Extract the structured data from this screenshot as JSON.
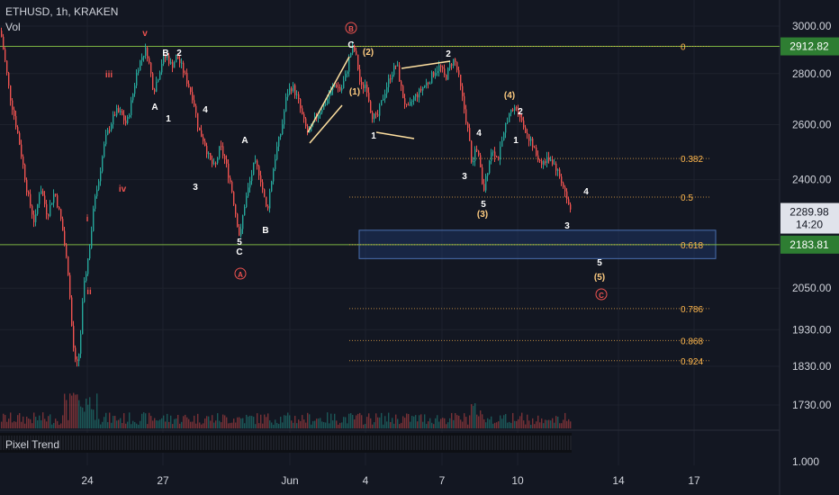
{
  "header": {
    "symbol_line": "ETHUSD, 1h, KRAKEN",
    "volume_label": "Vol",
    "indicator_label": "Pixel Trend"
  },
  "colors": {
    "background": "#131722",
    "up": "#26a69a",
    "down": "#ef5350",
    "guide": "#7cb342",
    "fib": "#ffb74d",
    "wave_red": "#ef5350",
    "wave_white": "#ffffff",
    "wave_orange": "#ffcc80",
    "zone_fill": "#1e3a6e",
    "axis_text": "#d1d4dc"
  },
  "chart_data": {
    "type": "candlestick",
    "title": "ETHUSD, 1h, KRAKEN",
    "y_axis": {
      "scale": "log",
      "ticks": [
        "3000.00",
        "2800.00",
        "2600.00",
        "2400.00",
        "2050.00",
        "1930.00",
        "1830.00",
        "1730.00"
      ]
    },
    "x_axis": {
      "ticks": [
        "24",
        "27",
        "Jun",
        "4",
        "7",
        "10",
        "14",
        "17"
      ]
    },
    "price_labels": [
      {
        "text": "2912.82",
        "value": 2912.82,
        "color": "green"
      },
      {
        "text": "2289.98",
        "sub": "14:20",
        "value": 2289.98,
        "color": "white"
      },
      {
        "text": "2183.81",
        "value": 2183.81,
        "color": "green"
      }
    ],
    "horizontal_lines": [
      2912.82,
      2183.81
    ],
    "fib_levels": [
      {
        "label": "0",
        "value": 2912.82
      },
      {
        "label": "0.382",
        "value": 2475
      },
      {
        "label": "0.5",
        "value": 2340
      },
      {
        "label": "0.618",
        "value": 2183.81
      },
      {
        "label": "0.786",
        "value": 1990
      },
      {
        "label": "0.868",
        "value": 1900
      },
      {
        "label": "0.924",
        "value": 1845
      }
    ],
    "zone": {
      "from": 2140,
      "to": 2230
    },
    "price_path": [
      [
        0,
        2980
      ],
      [
        10,
        2720
      ],
      [
        20,
        2550
      ],
      [
        30,
        2350
      ],
      [
        38,
        2250
      ],
      [
        44,
        2380
      ],
      [
        52,
        2280
      ],
      [
        60,
        2360
      ],
      [
        68,
        2250
      ],
      [
        75,
        2100
      ],
      [
        80,
        1900
      ],
      [
        84,
        1820
      ],
      [
        88,
        1880
      ],
      [
        92,
        2040
      ],
      [
        96,
        2120
      ],
      [
        100,
        2200
      ],
      [
        105,
        2350
      ],
      [
        110,
        2420
      ],
      [
        116,
        2540
      ],
      [
        122,
        2600
      ],
      [
        128,
        2650
      ],
      [
        134,
        2640
      ],
      [
        140,
        2600
      ],
      [
        146,
        2700
      ],
      [
        152,
        2820
      ],
      [
        158,
        2880
      ],
      [
        162,
        2900
      ],
      [
        166,
        2820
      ],
      [
        170,
        2730
      ],
      [
        175,
        2790
      ],
      [
        180,
        2860
      ],
      [
        185,
        2870
      ],
      [
        190,
        2830
      ],
      [
        196,
        2870
      ],
      [
        202,
        2820
      ],
      [
        208,
        2760
      ],
      [
        214,
        2700
      ],
      [
        220,
        2580
      ],
      [
        226,
        2540
      ],
      [
        232,
        2470
      ],
      [
        238,
        2440
      ],
      [
        244,
        2520
      ],
      [
        250,
        2460
      ],
      [
        256,
        2380
      ],
      [
        262,
        2270
      ],
      [
        266,
        2200
      ],
      [
        270,
        2300
      ],
      [
        276,
        2380
      ],
      [
        282,
        2460
      ],
      [
        288,
        2420
      ],
      [
        292,
        2350
      ],
      [
        296,
        2290
      ],
      [
        300,
        2380
      ],
      [
        306,
        2500
      ],
      [
        312,
        2580
      ],
      [
        318,
        2720
      ],
      [
        324,
        2750
      ],
      [
        330,
        2700
      ],
      [
        336,
        2620
      ],
      [
        342,
        2560
      ],
      [
        348,
        2610
      ],
      [
        354,
        2650
      ],
      [
        360,
        2680
      ],
      [
        366,
        2720
      ],
      [
        372,
        2760
      ],
      [
        378,
        2730
      ],
      [
        384,
        2800
      ],
      [
        388,
        2880
      ],
      [
        392,
        2910
      ],
      [
        396,
        2850
      ],
      [
        400,
        2740
      ],
      [
        406,
        2760
      ],
      [
        412,
        2640
      ],
      [
        418,
        2620
      ],
      [
        426,
        2720
      ],
      [
        434,
        2800
      ],
      [
        440,
        2840
      ],
      [
        446,
        2720
      ],
      [
        452,
        2650
      ],
      [
        458,
        2700
      ],
      [
        464,
        2720
      ],
      [
        470,
        2750
      ],
      [
        476,
        2770
      ],
      [
        482,
        2810
      ],
      [
        488,
        2830
      ],
      [
        494,
        2780
      ],
      [
        500,
        2840
      ],
      [
        504,
        2860
      ],
      [
        508,
        2800
      ],
      [
        514,
        2680
      ],
      [
        520,
        2560
      ],
      [
        524,
        2440
      ],
      [
        528,
        2530
      ],
      [
        532,
        2460
      ],
      [
        536,
        2350
      ],
      [
        540,
        2420
      ],
      [
        546,
        2520
      ],
      [
        552,
        2470
      ],
      [
        558,
        2540
      ],
      [
        562,
        2620
      ],
      [
        568,
        2650
      ],
      [
        574,
        2670
      ],
      [
        580,
        2600
      ],
      [
        586,
        2560
      ],
      [
        592,
        2510
      ],
      [
        598,
        2470
      ],
      [
        604,
        2460
      ],
      [
        610,
        2480
      ],
      [
        616,
        2450
      ],
      [
        620,
        2420
      ],
      [
        626,
        2370
      ],
      [
        630,
        2320
      ],
      [
        634,
        2290
      ]
    ],
    "wave_labels": [
      {
        "text": "v",
        "color": "red"
      },
      {
        "text": "iii",
        "color": "red"
      },
      {
        "text": "iv",
        "color": "red"
      },
      {
        "text": "i",
        "color": "red"
      },
      {
        "text": "ii",
        "color": "red"
      },
      {
        "text": "B",
        "color": "white"
      },
      {
        "text": "2",
        "color": "white"
      },
      {
        "text": "A",
        "color": "white"
      },
      {
        "text": "1",
        "color": "white"
      },
      {
        "text": "4",
        "color": "white"
      },
      {
        "text": "3",
        "color": "white"
      },
      {
        "text": "A",
        "color": "white"
      },
      {
        "text": "5",
        "color": "white"
      },
      {
        "text": "C",
        "color": "white"
      },
      {
        "text": "B",
        "color": "white"
      },
      {
        "text": "A",
        "color": "red_circle"
      },
      {
        "text": "B",
        "color": "red_circle"
      },
      {
        "text": "C",
        "color": "white"
      },
      {
        "text": "(2)",
        "color": "orange"
      },
      {
        "text": "(1)",
        "color": "orange"
      },
      {
        "text": "1",
        "color": "white"
      },
      {
        "text": "2",
        "color": "white"
      },
      {
        "text": "(4)",
        "color": "orange"
      },
      {
        "text": "2",
        "color": "white"
      },
      {
        "text": "4",
        "color": "white"
      },
      {
        "text": "1",
        "color": "white"
      },
      {
        "text": "3",
        "color": "white"
      },
      {
        "text": "5",
        "color": "white"
      },
      {
        "text": "(3)",
        "color": "orange"
      },
      {
        "text": "4",
        "color": "white"
      },
      {
        "text": "3",
        "color": "white"
      },
      {
        "text": "5",
        "color": "white"
      },
      {
        "text": "(5)",
        "color": "orange"
      },
      {
        "text": "C",
        "color": "red_circle"
      }
    ],
    "indicator_axis_label": "1.000"
  }
}
